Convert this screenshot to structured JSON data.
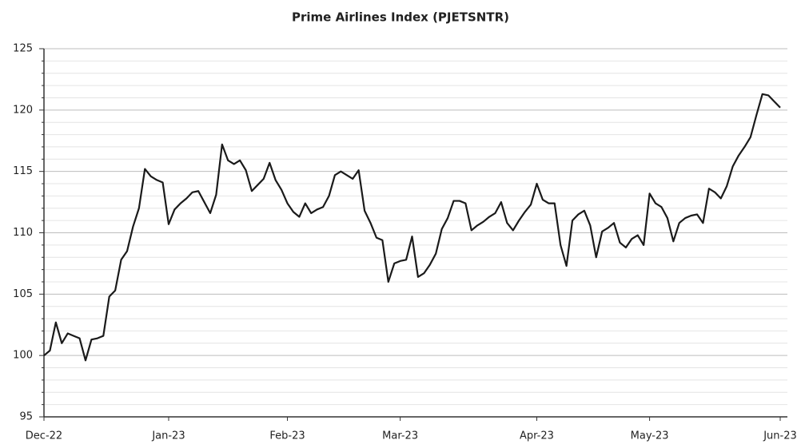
{
  "chart_data": {
    "type": "line",
    "title": "Prime Airlines Index (PJETSNTR)",
    "categories": [
      "Dec-22",
      null,
      null,
      null,
      null,
      null,
      null,
      null,
      null,
      null,
      null,
      null,
      null,
      null,
      null,
      null,
      null,
      null,
      null,
      null,
      null,
      "Jan-23",
      null,
      null,
      null,
      null,
      null,
      null,
      null,
      null,
      null,
      null,
      null,
      null,
      null,
      null,
      null,
      null,
      null,
      null,
      null,
      "Feb-23",
      null,
      null,
      null,
      null,
      null,
      null,
      null,
      null,
      null,
      null,
      null,
      null,
      null,
      null,
      null,
      null,
      null,
      null,
      "Mar-23",
      null,
      null,
      null,
      null,
      null,
      null,
      null,
      null,
      null,
      null,
      null,
      null,
      null,
      null,
      null,
      null,
      null,
      null,
      null,
      null,
      null,
      null,
      "Apr-23",
      null,
      null,
      null,
      null,
      null,
      null,
      null,
      null,
      null,
      null,
      null,
      null,
      null,
      null,
      null,
      null,
      null,
      null,
      "May-23",
      null,
      null,
      null,
      null,
      null,
      null,
      null,
      null,
      null,
      null,
      null,
      null,
      null,
      null,
      null,
      null,
      null,
      null,
      null,
      null,
      null,
      "Jun-23"
    ],
    "series": [
      {
        "name": "PJETSNTR",
        "color": "#1a1a1a",
        "values": [
          100.0,
          100.4,
          102.7,
          101.0,
          101.8,
          101.6,
          101.4,
          99.6,
          101.3,
          101.4,
          101.6,
          104.8,
          105.3,
          107.8,
          108.5,
          110.5,
          112.0,
          115.2,
          114.6,
          114.3,
          114.1,
          110.7,
          111.9,
          112.4,
          112.8,
          113.3,
          113.4,
          112.5,
          111.6,
          113.1,
          117.2,
          115.9,
          115.6,
          115.9,
          115.1,
          113.4,
          113.9,
          114.4,
          115.7,
          114.3,
          113.5,
          112.4,
          111.7,
          111.3,
          112.4,
          111.6,
          111.9,
          112.1,
          113.0,
          114.7,
          115.0,
          114.7,
          114.4,
          115.1,
          111.8,
          110.8,
          109.6,
          109.4,
          106.0,
          107.5,
          107.7,
          107.8,
          109.7,
          106.4,
          106.7,
          107.4,
          108.3,
          110.3,
          111.2,
          112.6,
          112.6,
          112.4,
          110.2,
          110.6,
          110.9,
          111.3,
          111.6,
          112.5,
          110.8,
          110.2,
          111.0,
          111.7,
          112.3,
          114.0,
          112.7,
          112.4,
          112.4,
          109.0,
          107.3,
          111.0,
          111.5,
          111.8,
          110.6,
          108.0,
          110.1,
          110.4,
          110.8,
          109.2,
          108.8,
          109.5,
          109.8,
          109.0,
          113.2,
          112.4,
          112.1,
          111.2,
          109.3,
          110.8,
          111.2,
          111.4,
          111.5,
          110.8,
          113.6,
          113.3,
          112.8,
          113.8,
          115.4,
          116.3,
          117.0,
          117.8,
          119.6,
          121.3,
          121.2,
          120.7,
          120.2
        ]
      }
    ],
    "ylim": [
      95,
      125
    ],
    "yticks": [
      95,
      100,
      105,
      110,
      115,
      120,
      125
    ],
    "y_minor_ticks": [
      96,
      97,
      98,
      99,
      101,
      102,
      103,
      104,
      106,
      107,
      108,
      109,
      111,
      112,
      113,
      114,
      116,
      117,
      118,
      119,
      121,
      122,
      123,
      124
    ],
    "grid": true
  }
}
